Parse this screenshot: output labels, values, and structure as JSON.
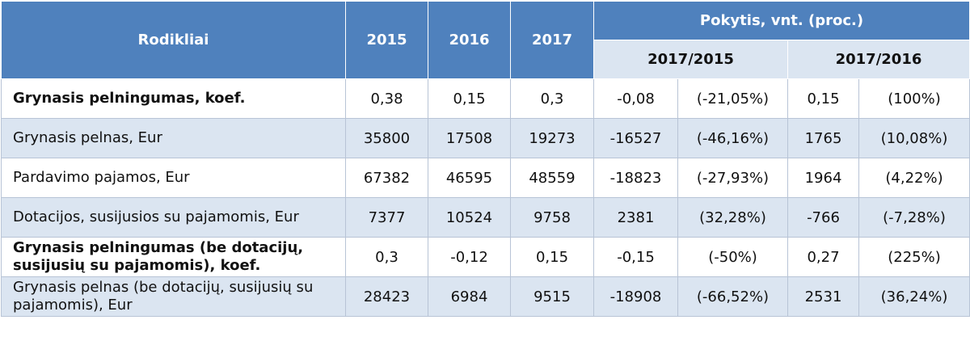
{
  "header": {
    "rodikliai": "Rodikliai",
    "years": [
      "2015",
      "2016",
      "2017"
    ],
    "change": "Pokytis, vnt. (proc.)",
    "periods": [
      "2017/2015",
      "2017/2016"
    ]
  },
  "rows": [
    {
      "label": "Grynasis pelningumas, koef.",
      "bold": true,
      "v2015": "0,38",
      "v2016": "0,15",
      "v2017": "0,3",
      "d1": "-0,08",
      "p1": "(-21,05%)",
      "d2": "0,15",
      "p2": "(100%)"
    },
    {
      "label": "Grynasis pelnas, Eur",
      "bold": false,
      "v2015": "35800",
      "v2016": "17508",
      "v2017": "19273",
      "d1": "-16527",
      "p1": "(-46,16%)",
      "d2": "1765",
      "p2": "(10,08%)"
    },
    {
      "label": "Pardavimo pajamos, Eur",
      "bold": false,
      "v2015": "67382",
      "v2016": "46595",
      "v2017": "48559",
      "d1": "-18823",
      "p1": "(-27,93%)",
      "d2": "1964",
      "p2": "(4,22%)"
    },
    {
      "label": "Dotacijos, susijusios su pajamomis, Eur",
      "bold": false,
      "v2015": "7377",
      "v2016": "10524",
      "v2017": "9758",
      "d1": "2381",
      "p1": "(32,28%)",
      "d2": "-766",
      "p2": "(-7,28%)"
    },
    {
      "label": "Grynasis pelningumas (be dotacijų, susijusių su pajamomis), koef.",
      "bold": true,
      "v2015": "0,3",
      "v2016": "-0,12",
      "v2017": "0,15",
      "d1": "-0,15",
      "p1": "(-50%)",
      "d2": "0,27",
      "p2": "(225%)"
    },
    {
      "label": "Grynasis pelnas (be dotacijų, susijusių su pajamomis), Eur",
      "bold": false,
      "v2015": "28423",
      "v2016": "6984",
      "v2017": "9515",
      "d1": "-18908",
      "p1": "(-66,52%)",
      "d2": "2531",
      "p2": "(36,24%)"
    }
  ]
}
